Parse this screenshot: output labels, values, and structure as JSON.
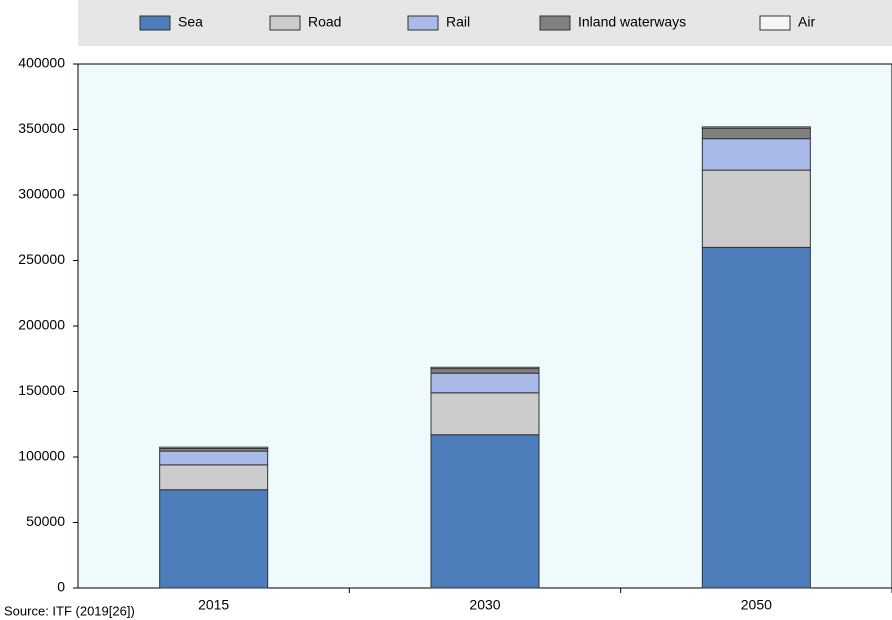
{
  "chart_data": {
    "type": "stacked-bar",
    "categories": [
      "2015",
      "2030",
      "2050"
    ],
    "series": [
      {
        "name": "Sea",
        "color": "#4d7ebb",
        "values": [
          75000,
          117000,
          260000
        ]
      },
      {
        "name": "Road",
        "color": "#cccccc",
        "values": [
          19000,
          32000,
          59000
        ]
      },
      {
        "name": "Rail",
        "color": "#a9b9e8",
        "values": [
          10500,
          15000,
          24000
        ]
      },
      {
        "name": "Inland waterways",
        "color": "#808080",
        "values": [
          2000,
          3500,
          8000
        ]
      },
      {
        "name": "Air",
        "color": "#f5f5f5",
        "values": [
          1000,
          1000,
          1000
        ]
      }
    ],
    "ylim": [
      0,
      400000
    ],
    "yticks": [
      0,
      50000,
      100000,
      150000,
      200000,
      250000,
      300000,
      350000,
      400000
    ],
    "source": "Source: ITF (2019[26])"
  }
}
